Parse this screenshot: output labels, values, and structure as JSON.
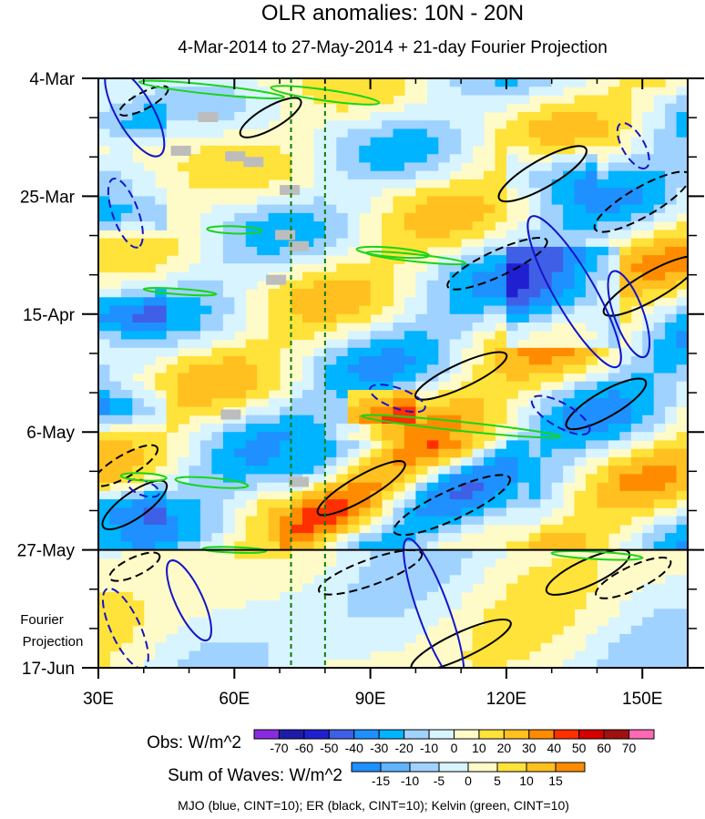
{
  "chart_data": {
    "type": "heatmap",
    "title": "OLR anomalies: 10N - 20N",
    "subtitle": "4-Mar-2014 to 27-May-2014 + 21-day Fourier Projection",
    "x_ticks": [
      {
        "lon": 30,
        "label": "30E"
      },
      {
        "lon": 60,
        "label": "60E"
      },
      {
        "lon": 90,
        "label": "90E"
      },
      {
        "lon": 120,
        "label": "120E"
      },
      {
        "lon": 150,
        "label": "150E"
      }
    ],
    "xlim": [
      30,
      160
    ],
    "y_range_days": [
      0,
      105
    ],
    "y_ticks": [
      {
        "day": 0,
        "label": "4-Mar"
      },
      {
        "day": 21,
        "label": "25-Mar"
      },
      {
        "day": 42,
        "label": "15-Apr"
      },
      {
        "day": 63,
        "label": "6-May"
      },
      {
        "day": 84,
        "label": "27-May"
      },
      {
        "day": 105,
        "label": "17-Jun"
      }
    ],
    "projection_label": [
      "Fourier",
      "Projection"
    ],
    "projection_start_day": 84,
    "reference_lons": [
      72.5,
      80
    ],
    "obs_colorbar": {
      "label": "Obs: W/m^2",
      "ticks": [
        "-70",
        "-60",
        "-50",
        "-40",
        "-30",
        "-20",
        "-10",
        "0",
        "10",
        "20",
        "30",
        "40",
        "50",
        "60",
        "70"
      ],
      "colors": [
        "#8a2be2",
        "#1c1ca8",
        "#2020d0",
        "#3f5fe6",
        "#1e90ff",
        "#00b4ff",
        "#a0d2ff",
        "#d8f4ff",
        "#fffbc8",
        "#ffe23a",
        "#ffc020",
        "#ff8c00",
        "#ff3000",
        "#d40000",
        "#a01010",
        "#ff69b4"
      ]
    },
    "waves_colorbar": {
      "label": "Sum of Waves: W/m^2",
      "ticks": [
        "-15",
        "-10",
        "-5",
        "0",
        "5",
        "10",
        "15"
      ],
      "colors": [
        "#1e90ff",
        "#5fb4ff",
        "#a0d2ff",
        "#d8f4ff",
        "#fffbc8",
        "#ffe23a",
        "#ffc020",
        "#ff8c00"
      ]
    },
    "legend_note": "MJO (blue, CINT=10); ER (black, CINT=10); Kelvin (green, CINT=10)",
    "contour_colors": {
      "mjo": "#1414c8",
      "er": "#000000",
      "kelvin": "#19d419"
    }
  }
}
